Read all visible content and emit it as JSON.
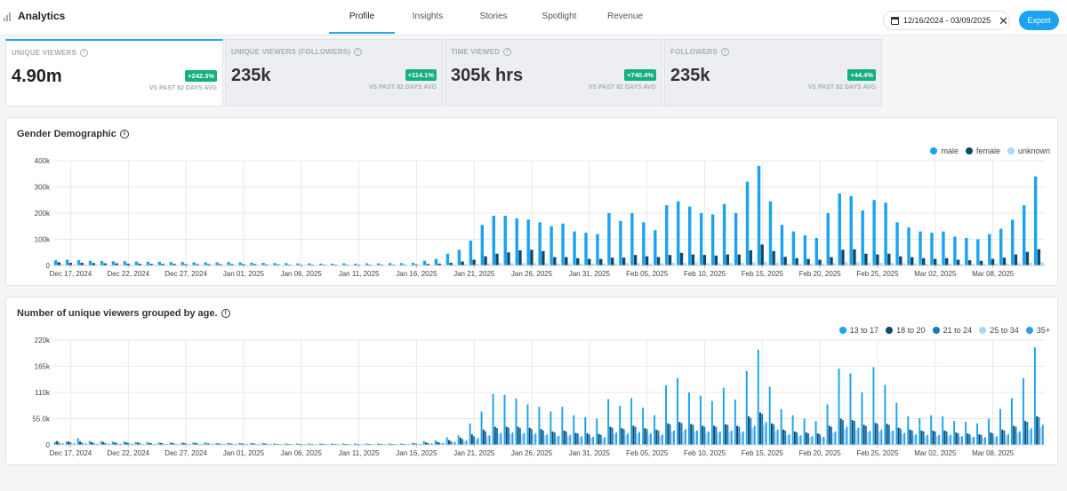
{
  "header": {
    "title": "Analytics",
    "tabs": [
      {
        "label": "Profile",
        "active": true
      },
      {
        "label": "Insights",
        "active": false
      },
      {
        "label": "Stories",
        "active": false
      },
      {
        "label": "Spotlight",
        "active": false
      },
      {
        "label": "Revenue",
        "active": false
      }
    ],
    "date_range": "12/16/2024 - 03/09/2025",
    "export_label": "Export"
  },
  "cards": [
    {
      "label": "UNIQUE VIEWERS",
      "value": "4.90m",
      "badge": "+242.3%",
      "sub": "VS PAST 82 DAYS AVG",
      "active": true
    },
    {
      "label": "UNIQUE VIEWERS (FOLLOWERS)",
      "value": "235k",
      "badge": "+114.1%",
      "sub": "VS PAST 82 DAYS AVG",
      "active": false
    },
    {
      "label": "TIME VIEWED",
      "value": "305k hrs",
      "badge": "+740.4%",
      "sub": "VS PAST 82 DAYS AVG",
      "active": false
    },
    {
      "label": "FOLLOWERS",
      "value": "235k",
      "badge": "+44.4%",
      "sub": "VS PAST 82 DAYS AVG",
      "active": false
    }
  ],
  "colors": {
    "accent": "#2aa8ee",
    "badge": "#16b07e",
    "male": "#1ba3ef",
    "female": "#0b4a6e",
    "unknown": "#a8d8f5",
    "age_13_17": "#1ba3ef",
    "age_18_20": "#0b4a6e",
    "age_21_24": "#1a78b5",
    "age_25_34": "#a8d8f5",
    "age_35_plus": "#2a9de8"
  },
  "chart_data": [
    {
      "type": "bar",
      "title": "Gender Demographic",
      "ylim": [
        0,
        400000
      ],
      "yticks": [
        0,
        100000,
        200000,
        300000,
        400000
      ],
      "ytick_labels": [
        "0",
        "100k",
        "200k",
        "300k",
        "400k"
      ],
      "date_labels": [
        "Dec 17, 2024",
        "Dec 22, 2024",
        "Dec 27, 2024",
        "Jan 01, 2025",
        "Jan 06, 2025",
        "Jan 11, 2025",
        "Jan 16, 2025",
        "Jan 21, 2025",
        "Jan 26, 2025",
        "Jan 31, 2025",
        "Feb 05, 2025",
        "Feb 10, 2025",
        "Feb 15, 2025",
        "Feb 20, 2025",
        "Feb 25, 2025",
        "Mar 02, 2025",
        "Mar 08, 2025"
      ],
      "legend_position": "top-right",
      "grid": true,
      "series": [
        {
          "name": "male",
          "color": "#1ba3ef",
          "values": [
            20000,
            22000,
            20000,
            18000,
            17000,
            16000,
            16000,
            15000,
            14000,
            14000,
            13000,
            13000,
            12000,
            12000,
            12000,
            13000,
            12000,
            11000,
            10000,
            9000,
            9000,
            8000,
            8000,
            7000,
            7000,
            8000,
            7000,
            8000,
            8000,
            9000,
            9000,
            10000,
            18000,
            25000,
            45000,
            60000,
            95000,
            155000,
            190000,
            190000,
            180000,
            175000,
            165000,
            150000,
            160000,
            130000,
            125000,
            120000,
            200000,
            170000,
            200000,
            165000,
            135000,
            230000,
            245000,
            225000,
            200000,
            195000,
            235000,
            200000,
            320000,
            380000,
            245000,
            155000,
            130000,
            115000,
            105000,
            200000,
            275000,
            265000,
            210000,
            250000,
            240000,
            165000,
            145000,
            130000,
            125000,
            130000,
            110000,
            105000,
            100000,
            120000,
            140000,
            175000,
            230000,
            340000
          ]
        },
        {
          "name": "female",
          "color": "#0b4a6e",
          "values": [
            12000,
            10000,
            10000,
            9000,
            8000,
            8000,
            7000,
            7000,
            6000,
            6000,
            6000,
            5000,
            5000,
            5000,
            5000,
            5000,
            5000,
            5000,
            4000,
            4000,
            3000,
            3000,
            3000,
            3000,
            3000,
            3000,
            3000,
            3000,
            3000,
            3000,
            3000,
            4000,
            6000,
            7000,
            10000,
            15000,
            22000,
            35000,
            45000,
            50000,
            58000,
            60000,
            55000,
            32000,
            32000,
            28000,
            25000,
            25000,
            30000,
            30000,
            40000,
            35000,
            32000,
            40000,
            48000,
            42000,
            40000,
            38000,
            42000,
            42000,
            58000,
            80000,
            55000,
            33000,
            28000,
            25000,
            22000,
            32000,
            60000,
            62000,
            45000,
            42000,
            45000,
            35000,
            32000,
            28000,
            25000,
            28000,
            22000,
            20000,
            18000,
            25000,
            30000,
            42000,
            52000,
            62000
          ]
        },
        {
          "name": "unknown",
          "color": "#a8d8f5",
          "values": [
            4000,
            4000,
            4000,
            3500,
            3500,
            3000,
            3000,
            3000,
            3000,
            2500,
            2500,
            2500,
            2500,
            2500,
            2500,
            2500,
            2500,
            2000,
            2000,
            2000,
            2000,
            2000,
            2000,
            1500,
            1500,
            1500,
            1500,
            1500,
            1500,
            1500,
            1500,
            2000,
            2500,
            3000,
            4000,
            5000,
            6000,
            8000,
            9000,
            9000,
            9000,
            9000,
            9000,
            8000,
            8000,
            7000,
            7000,
            7000,
            9000,
            9000,
            9000,
            8000,
            8000,
            10000,
            10000,
            10000,
            9000,
            9000,
            10000,
            10000,
            12000,
            14000,
            10000,
            8000,
            7000,
            7000,
            6000,
            9000,
            12000,
            12000,
            10000,
            10000,
            10000,
            8000,
            8000,
            7000,
            7000,
            7000,
            6000,
            6000,
            6000,
            7000,
            8000,
            9000,
            10000,
            12000
          ]
        }
      ]
    },
    {
      "type": "bar",
      "title": "Number of unique viewers grouped by age.",
      "ylim": [
        0,
        220000
      ],
      "yticks": [
        0,
        55000,
        110000,
        165000,
        220000
      ],
      "ytick_labels": [
        "0",
        "55.0k",
        "110k",
        "165k",
        "220k"
      ],
      "date_labels": [
        "Dec 17, 2024",
        "Dec 22, 2024",
        "Dec 27, 2024",
        "Jan 01, 2025",
        "Jan 06, 2025",
        "Jan 11, 2025",
        "Jan 16, 2025",
        "Jan 21, 2025",
        "Jan 26, 2025",
        "Jan 31, 2025",
        "Feb 05, 2025",
        "Feb 10, 2025",
        "Feb 15, 2025",
        "Feb 20, 2025",
        "Feb 25, 2025",
        "Mar 02, 2025",
        "Mar 08, 2025"
      ],
      "legend_position": "top-right",
      "grid": true,
      "series": [
        {
          "name": "13 to 17",
          "color": "#1ba3ef",
          "values": [
            6000,
            7000,
            14000,
            8000,
            8000,
            7000,
            7000,
            6000,
            6000,
            5000,
            5000,
            5000,
            5000,
            5000,
            4000,
            4000,
            4000,
            4000,
            4000,
            3000,
            3000,
            3000,
            3000,
            3000,
            3000,
            3000,
            3000,
            3000,
            3000,
            3000,
            3000,
            4000,
            8000,
            10000,
            16000,
            20000,
            45000,
            70000,
            107000,
            105000,
            97000,
            85000,
            80000,
            70000,
            80000,
            62000,
            58000,
            55000,
            96000,
            82000,
            98000,
            78000,
            62000,
            125000,
            140000,
            110000,
            103000,
            92000,
            120000,
            95000,
            155000,
            200000,
            122000,
            75000,
            62000,
            55000,
            50000,
            85000,
            160000,
            150000,
            110000,
            163000,
            126000,
            88000,
            60000,
            56000,
            62000,
            60000,
            50000,
            48000,
            45000,
            55000,
            75000,
            98000,
            140000,
            205000
          ]
        },
        {
          "name": "18 to 20",
          "color": "#0b4a6e",
          "values": [
            8000,
            7000,
            7000,
            6000,
            6000,
            5000,
            5000,
            5000,
            4000,
            4000,
            4000,
            4000,
            4000,
            3000,
            3000,
            3000,
            3000,
            3000,
            3000,
            2000,
            2000,
            2000,
            2000,
            2000,
            2000,
            2000,
            2000,
            2000,
            2000,
            2000,
            2000,
            3000,
            5000,
            6000,
            10000,
            15000,
            22000,
            32000,
            38000,
            38000,
            38000,
            36000,
            33000,
            28000,
            30000,
            25000,
            24000,
            23000,
            38000,
            35000,
            40000,
            35000,
            32000,
            45000,
            48000,
            44000,
            40000,
            40000,
            43000,
            40000,
            60000,
            68000,
            45000,
            32000,
            28000,
            26000,
            24000,
            40000,
            55000,
            52000,
            42000,
            46000,
            44000,
            36000,
            32000,
            30000,
            30000,
            30000,
            26000,
            24000,
            22000,
            26000,
            32000,
            40000,
            50000,
            60000
          ]
        },
        {
          "name": "21 to 24",
          "color": "#1a78b5",
          "values": [
            5000,
            5000,
            5000,
            4000,
            4000,
            4000,
            4000,
            3500,
            3500,
            3000,
            3000,
            3000,
            3000,
            3000,
            2500,
            2500,
            2500,
            2500,
            2500,
            2000,
            2000,
            2000,
            2000,
            2000,
            2000,
            2000,
            2000,
            2000,
            2000,
            2000,
            2000,
            2500,
            4000,
            5000,
            8000,
            12000,
            18000,
            28000,
            35000,
            36000,
            35000,
            33000,
            30000,
            26000,
            28000,
            24000,
            22000,
            21000,
            36000,
            33000,
            38000,
            33000,
            30000,
            43000,
            46000,
            42000,
            38000,
            38000,
            42000,
            38000,
            56000,
            65000,
            43000,
            30000,
            26000,
            24000,
            22000,
            38000,
            52000,
            50000,
            40000,
            44000,
            42000,
            34000,
            30000,
            28000,
            28000,
            28000,
            24000,
            22000,
            21000,
            24000,
            30000,
            38000,
            48000,
            58000
          ]
        },
        {
          "name": "25 to 34",
          "color": "#a8d8f5",
          "values": [
            3000,
            3000,
            3000,
            3000,
            3000,
            2500,
            2500,
            2500,
            2500,
            2000,
            2000,
            2000,
            2000,
            2000,
            2000,
            2000,
            2000,
            2000,
            2000,
            1500,
            1500,
            1500,
            1500,
            1500,
            1500,
            1500,
            1500,
            1500,
            1500,
            1500,
            1500,
            2000,
            3000,
            4000,
            6000,
            8000,
            12000,
            18000,
            22000,
            23000,
            22000,
            21000,
            20000,
            17000,
            18000,
            16000,
            15000,
            14000,
            22000,
            21000,
            24000,
            21000,
            19000,
            27000,
            29000,
            27000,
            25000,
            25000,
            27000,
            25000,
            35000,
            42000,
            28000,
            20000,
            18000,
            16000,
            15000,
            25000,
            33000,
            32000,
            26000,
            28000,
            27000,
            22000,
            20000,
            18000,
            18000,
            18000,
            16000,
            15000,
            14000,
            16000,
            20000,
            25000,
            31000,
            37000
          ]
        },
        {
          "name": "35+",
          "color": "#2a9de8",
          "values": [
            3000,
            3000,
            3000,
            2500,
            2500,
            2500,
            2500,
            2000,
            2000,
            2000,
            2000,
            2000,
            2000,
            2000,
            2000,
            2000,
            2000,
            2000,
            2000,
            1500,
            1500,
            1500,
            1500,
            1500,
            1500,
            1500,
            1500,
            1500,
            1500,
            1500,
            1500,
            2000,
            3000,
            4000,
            6000,
            9000,
            14000,
            20000,
            25000,
            26000,
            25000,
            24000,
            22000,
            19000,
            21000,
            18000,
            17000,
            16000,
            26000,
            24000,
            27000,
            24000,
            21000,
            30000,
            33000,
            30000,
            28000,
            28000,
            30000,
            28000,
            40000,
            48000,
            32000,
            22000,
            20000,
            18000,
            17000,
            28000,
            38000,
            36000,
            29000,
            32000,
            30000,
            25000,
            22000,
            21000,
            21000,
            21000,
            18000,
            17000,
            16000,
            18000,
            22000,
            28000,
            35000,
            42000
          ]
        }
      ]
    }
  ]
}
